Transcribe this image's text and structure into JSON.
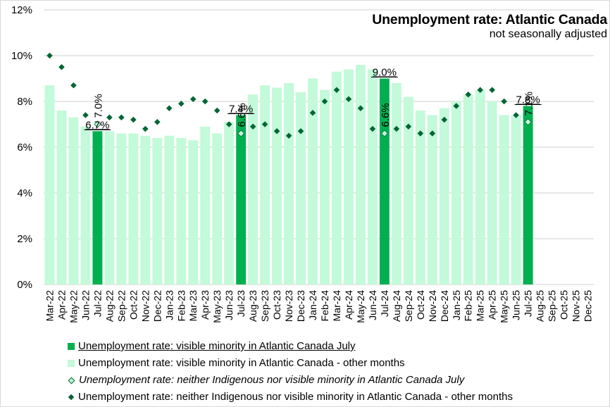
{
  "chart_data": {
    "type": "bar",
    "title": "Unemployment rate: Atlantic Canada",
    "subtitle": "not seasonally adjusted",
    "xlabel": "",
    "ylabel": "",
    "ylim": [
      0,
      12
    ],
    "y_ticks": [
      "0%",
      "2%",
      "4%",
      "6%",
      "8%",
      "10%",
      "12%"
    ],
    "y_tick_values": [
      0,
      2,
      4,
      6,
      8,
      10,
      12
    ],
    "grid": true,
    "legend_position": "bottom",
    "categories": [
      "Mar-22",
      "Apr-22",
      "May-22",
      "Jun-22",
      "Jul-22",
      "Aug-22",
      "Sep-22",
      "Oct-22",
      "Nov-22",
      "Dec-22",
      "Jan-23",
      "Feb-23",
      "Mar-23",
      "Apr-23",
      "May-23",
      "Jun-23",
      "Jul-23",
      "Aug-23",
      "Sep-23",
      "Oct-23",
      "Nov-23",
      "Dec-23",
      "Jan-24",
      "Feb-24",
      "Mar-24",
      "Apr-24",
      "May-24",
      "Jun-24",
      "Jul-24",
      "Aug-24",
      "Sep-24",
      "Oct-24",
      "Nov-24",
      "Dec-24",
      "Jan-25",
      "Feb-25",
      "Mar-25",
      "Apr-25",
      "May-25",
      "Jun-25",
      "Jul-25",
      "Aug-25",
      "Sep-25",
      "Oct-25",
      "Nov-25",
      "Dec-25"
    ],
    "series": [
      {
        "name": "Unemployment rate: visible minority in Atlantic Canada July",
        "kind": "bar",
        "color": "#00B050",
        "values": [
          null,
          null,
          null,
          null,
          6.7,
          null,
          null,
          null,
          null,
          null,
          null,
          null,
          null,
          null,
          null,
          null,
          7.4,
          null,
          null,
          null,
          null,
          null,
          null,
          null,
          null,
          null,
          null,
          null,
          9.0,
          null,
          null,
          null,
          null,
          null,
          null,
          null,
          null,
          null,
          null,
          null,
          7.8,
          null,
          null,
          null,
          null,
          null
        ],
        "labels": [
          "6.7%",
          "7.4%",
          "9.0%",
          "7.8%"
        ]
      },
      {
        "name": "Unemployment rate: visible minority in Atlantic Canada - other months",
        "kind": "bar",
        "color": "#C3FAD9",
        "values": [
          8.7,
          7.6,
          7.3,
          6.9,
          null,
          6.7,
          6.6,
          6.6,
          6.5,
          6.4,
          6.5,
          6.4,
          6.3,
          6.9,
          6.6,
          7.1,
          null,
          8.3,
          8.7,
          8.6,
          8.8,
          8.4,
          9.0,
          8.5,
          9.3,
          9.4,
          9.6,
          9.4,
          null,
          8.8,
          8.2,
          7.6,
          7.4,
          7.7,
          8.0,
          8.3,
          8.5,
          8.0,
          7.4,
          7.4,
          null,
          null,
          null,
          null,
          null,
          null
        ]
      },
      {
        "name": "Unemployment rate: neither Indigenous nor visible minority in Atlantic Canada July",
        "kind": "scatter",
        "marker": "diamond-open",
        "color": "#C3FAD9",
        "edge_color": "#006633",
        "values": [
          null,
          null,
          null,
          null,
          7.0,
          null,
          null,
          null,
          null,
          null,
          null,
          null,
          null,
          null,
          null,
          null,
          6.6,
          null,
          null,
          null,
          null,
          null,
          null,
          null,
          null,
          null,
          null,
          null,
          6.6,
          null,
          null,
          null,
          null,
          null,
          null,
          null,
          null,
          null,
          null,
          null,
          7.1,
          null,
          null,
          null,
          null,
          null
        ],
        "labels": [
          "7.0%",
          "6.6%",
          "6.6%",
          "7.1%"
        ]
      },
      {
        "name": "Unemployment rate: neither Indigenous nor visible minority in Atlantic Canada - other months",
        "kind": "scatter",
        "marker": "diamond",
        "color": "#006633",
        "values": [
          10.0,
          9.5,
          8.7,
          7.4,
          null,
          7.3,
          7.3,
          7.2,
          6.8,
          7.1,
          7.7,
          7.9,
          8.1,
          8.0,
          7.6,
          7.0,
          null,
          6.9,
          7.0,
          6.7,
          6.5,
          6.7,
          7.5,
          8.0,
          8.5,
          8.1,
          7.7,
          6.8,
          null,
          6.8,
          6.9,
          6.6,
          6.6,
          7.2,
          7.8,
          8.3,
          8.5,
          8.5,
          8.0,
          7.4,
          null,
          null,
          null,
          null,
          null,
          null
        ]
      }
    ]
  },
  "legend": [
    {
      "label": "Unemployment rate: visible minority in Atlantic Canada July",
      "style": "underline"
    },
    {
      "label": "Unemployment rate: visible minority in Atlantic Canada - other months",
      "style": "normal"
    },
    {
      "label": "Unemployment rate: neither Indigenous nor visible minority in Atlantic Canada July",
      "style": "italic"
    },
    {
      "label": "Unemployment rate: neither Indigenous nor visible minority in Atlantic Canada - other months",
      "style": "normal"
    }
  ]
}
